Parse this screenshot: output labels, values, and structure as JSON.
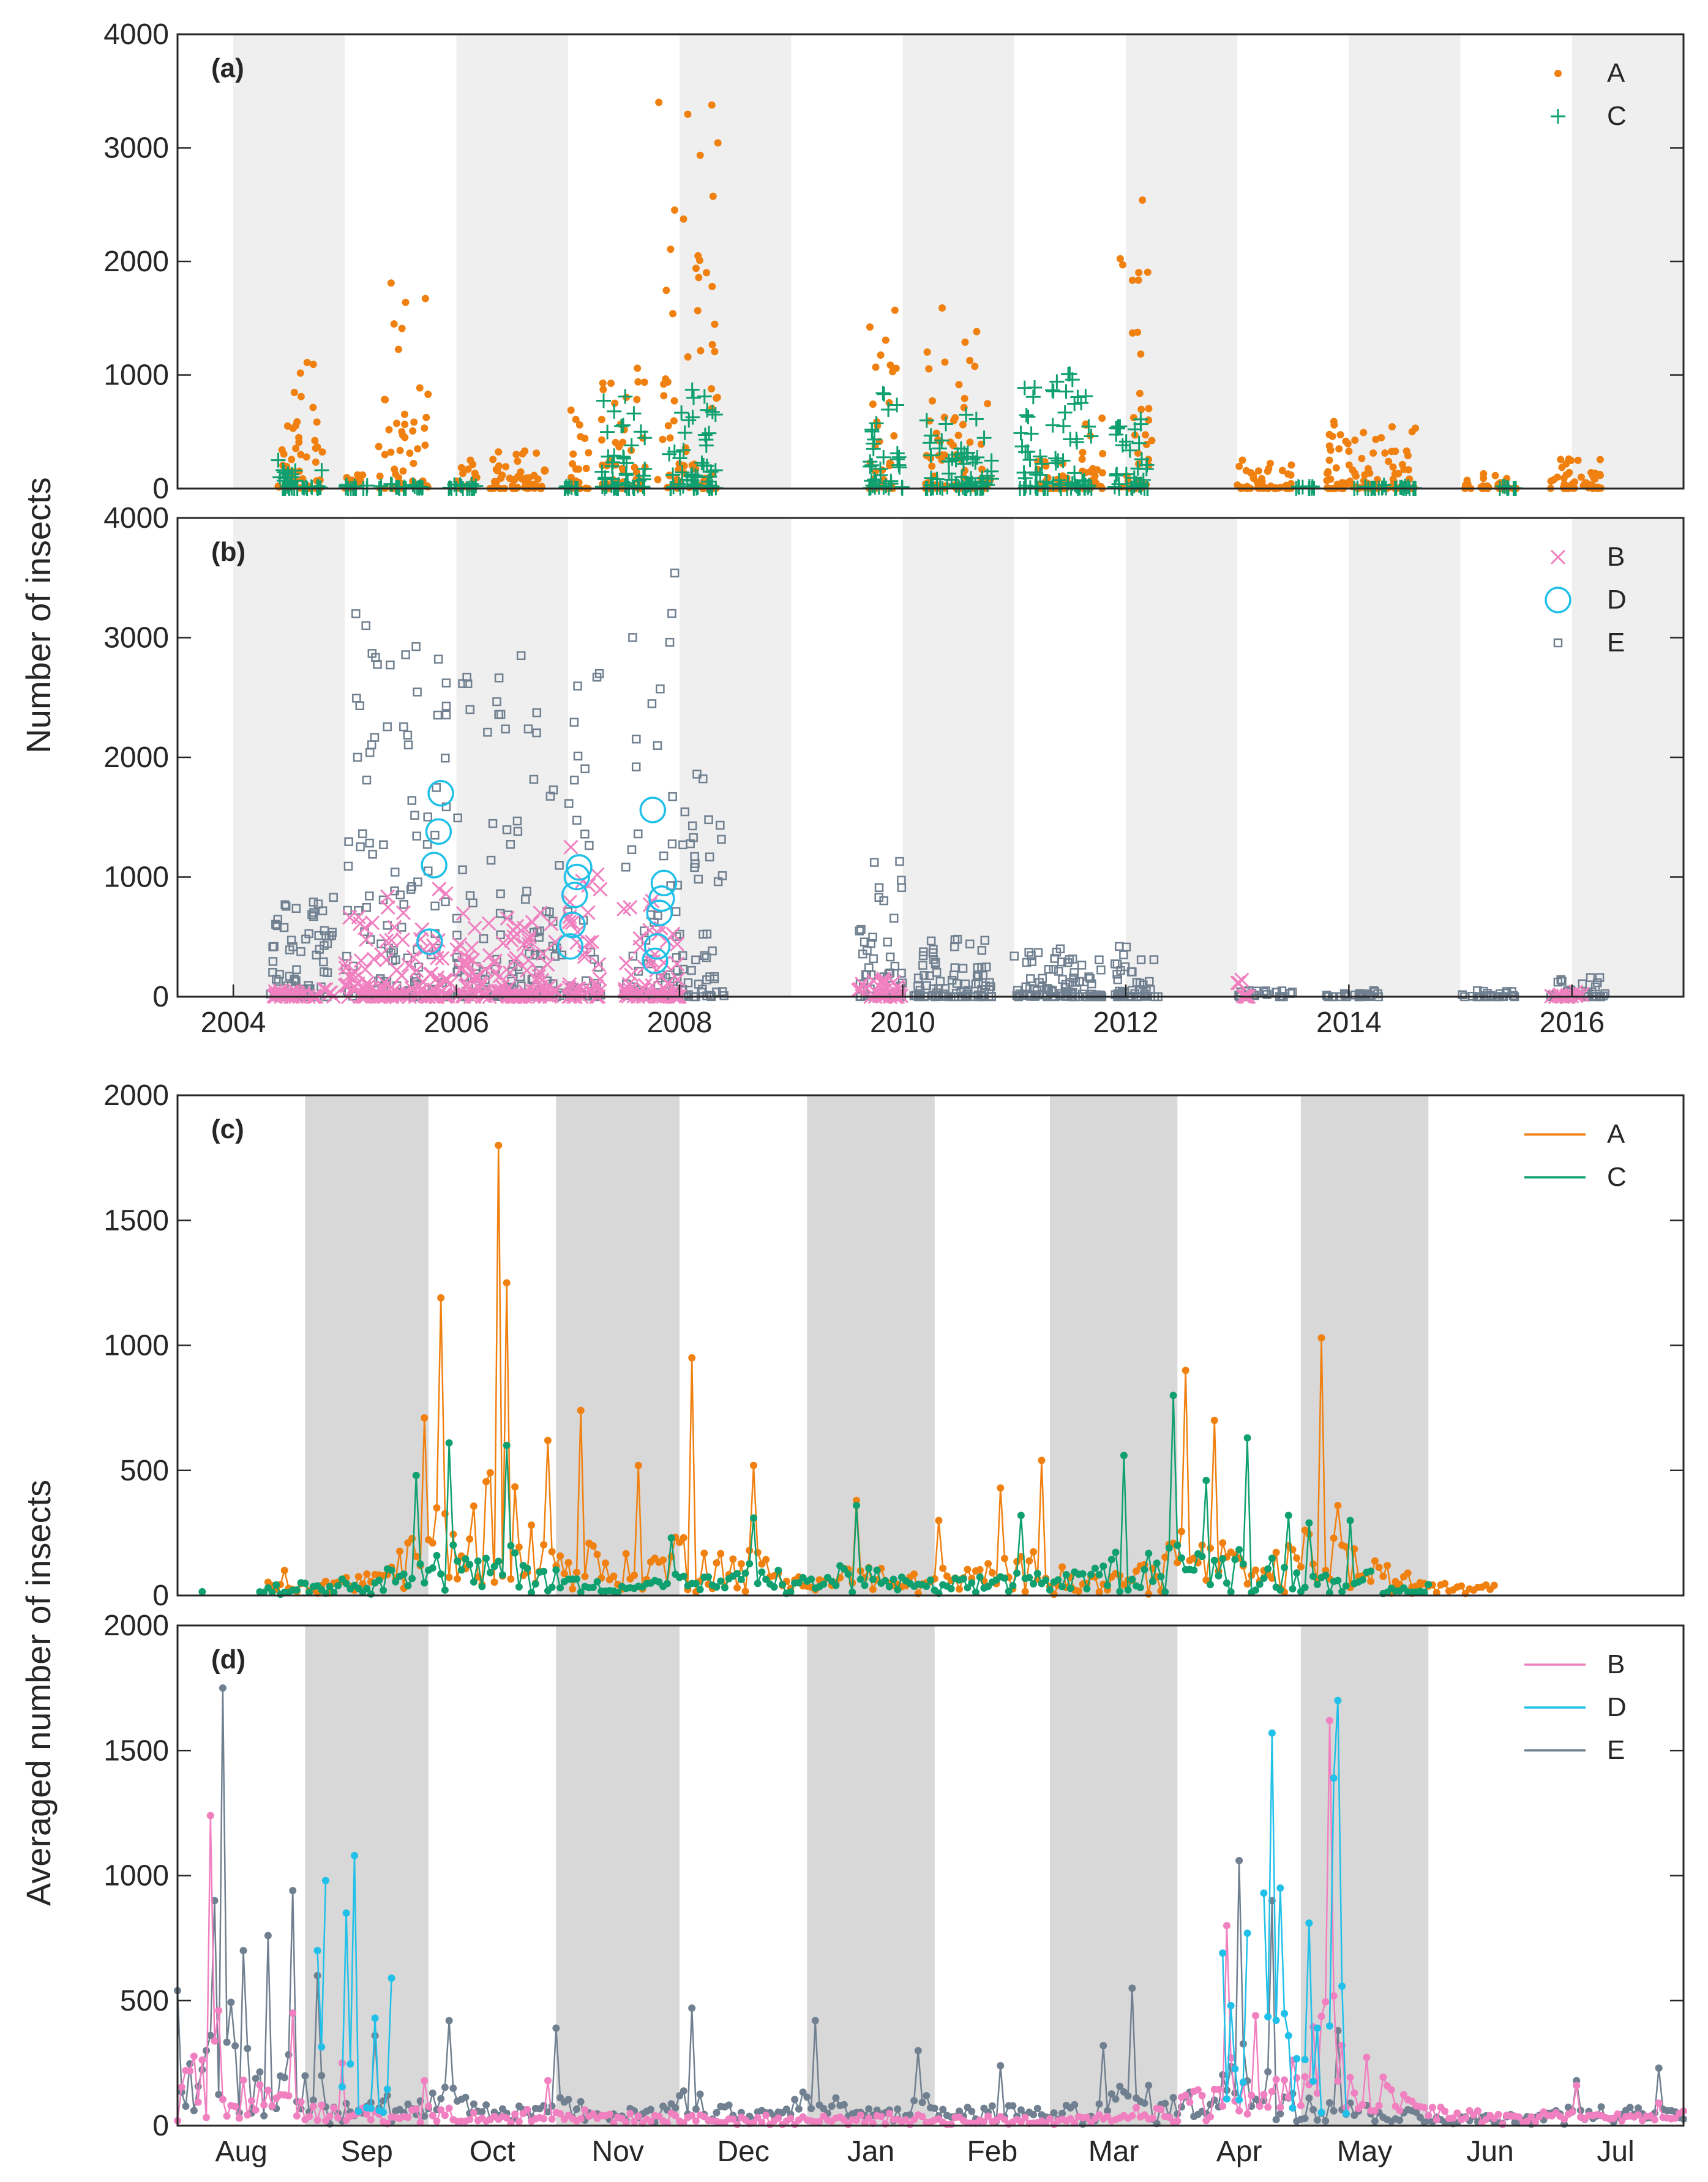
{
  "chart_data": [
    {
      "panel": "(a)",
      "type": "scatter",
      "ylabel": "Number of insects",
      "xlim": [
        2003.5,
        2017.0
      ],
      "ylim": [
        0,
        4000
      ],
      "yticks": [
        "0",
        "1000",
        "2000",
        "3000",
        "4000"
      ],
      "shaded_years": [
        2004,
        2006,
        2008,
        2010,
        2012,
        2014,
        2016
      ],
      "legend": [
        "A",
        "C"
      ],
      "colors": {
        "A": "#f08010",
        "C": "#10a070"
      },
      "series": [
        {
          "name": "A",
          "marker": "dot",
          "clusters": [
            {
              "x0": 2004.4,
              "x1": 2004.8,
              "peak": 1110
            },
            {
              "x0": 2005.0,
              "x1": 2005.2,
              "peak": 120
            },
            {
              "x0": 2005.3,
              "x1": 2005.75,
              "peak": 1810
            },
            {
              "x0": 2006.0,
              "x1": 2006.2,
              "peak": 250
            },
            {
              "x0": 2006.3,
              "x1": 2006.8,
              "peak": 330
            },
            {
              "x0": 2007.0,
              "x1": 2007.2,
              "peak": 690
            },
            {
              "x0": 2007.3,
              "x1": 2007.7,
              "peak": 1060
            },
            {
              "x0": 2007.8,
              "x1": 2008.35,
              "peak": 3400
            },
            {
              "x0": 2009.7,
              "x1": 2009.95,
              "peak": 1570
            },
            {
              "x0": 2010.2,
              "x1": 2010.8,
              "peak": 1590
            },
            {
              "x0": 2011.2,
              "x1": 2011.5,
              "peak": 240
            },
            {
              "x0": 2011.6,
              "x1": 2011.8,
              "peak": 620
            },
            {
              "x0": 2011.95,
              "x1": 2012.25,
              "peak": 2540
            },
            {
              "x0": 2013.0,
              "x1": 2013.5,
              "peak": 250
            },
            {
              "x0": 2013.8,
              "x1": 2014.6,
              "peak": 590
            },
            {
              "x0": 2015.0,
              "x1": 2015.5,
              "peak": 130
            },
            {
              "x0": 2015.8,
              "x1": 2016.3,
              "peak": 260
            }
          ]
        },
        {
          "name": "C",
          "marker": "plus",
          "clusters": [
            {
              "x0": 2004.4,
              "x1": 2004.8,
              "peak": 250
            },
            {
              "x0": 2005.0,
              "x1": 2005.7,
              "peak": 40
            },
            {
              "x0": 2005.9,
              "x1": 2006.2,
              "peak": 40
            },
            {
              "x0": 2006.9,
              "x1": 2007.1,
              "peak": 20
            },
            {
              "x0": 2007.3,
              "x1": 2007.7,
              "peak": 810
            },
            {
              "x0": 2007.9,
              "x1": 2008.35,
              "peak": 870
            },
            {
              "x0": 2009.7,
              "x1": 2010.0,
              "peak": 840
            },
            {
              "x0": 2010.2,
              "x1": 2010.8,
              "peak": 650
            },
            {
              "x0": 2011.05,
              "x1": 2011.7,
              "peak": 1010
            },
            {
              "x0": 2011.9,
              "x1": 2012.2,
              "peak": 610
            },
            {
              "x0": 2013.5,
              "x1": 2013.7,
              "peak": 20
            },
            {
              "x0": 2014.0,
              "x1": 2014.6,
              "peak": 30
            },
            {
              "x0": 2015.3,
              "x1": 2015.5,
              "peak": 20
            }
          ]
        }
      ]
    },
    {
      "panel": "(b)",
      "type": "scatter",
      "ylabel": "Number of insects",
      "xlim": [
        2003.5,
        2017.0
      ],
      "ylim": [
        0,
        4000
      ],
      "yticks": [
        "0",
        "1000",
        "2000",
        "3000",
        "4000"
      ],
      "xticks": [
        "2004",
        "2006",
        "2008",
        "2010",
        "2012",
        "2014",
        "2016"
      ],
      "shaded_years": [
        2004,
        2006,
        2008,
        2010,
        2012,
        2014,
        2016
      ],
      "legend": [
        "B",
        "D",
        "E"
      ],
      "colors": {
        "B": "#f080c0",
        "D": "#20c0e8",
        "E": "#708090"
      },
      "series": [
        {
          "name": "E",
          "marker": "square",
          "clusters": [
            {
              "x0": 2004.3,
              "x1": 2004.9,
              "peak": 830
            },
            {
              "x0": 2005.0,
              "x1": 2005.95,
              "peak": 3200
            },
            {
              "x0": 2006.0,
              "x1": 2006.95,
              "peak": 2850
            },
            {
              "x0": 2007.0,
              "x1": 2007.3,
              "peak": 2700
            },
            {
              "x0": 2007.5,
              "x1": 2008.0,
              "peak": 3540
            },
            {
              "x0": 2008.0,
              "x1": 2008.4,
              "peak": 1860
            },
            {
              "x0": 2009.6,
              "x1": 2010.0,
              "peak": 1130
            },
            {
              "x0": 2010.1,
              "x1": 2010.8,
              "peak": 480
            },
            {
              "x0": 2011.0,
              "x1": 2011.8,
              "peak": 400
            },
            {
              "x0": 2011.9,
              "x1": 2012.3,
              "peak": 420
            },
            {
              "x0": 2013.0,
              "x1": 2013.5,
              "peak": 50
            },
            {
              "x0": 2013.8,
              "x1": 2014.3,
              "peak": 50
            },
            {
              "x0": 2015.0,
              "x1": 2015.5,
              "peak": 50
            },
            {
              "x0": 2015.8,
              "x1": 2016.3,
              "peak": 160
            }
          ]
        },
        {
          "name": "B",
          "marker": "x",
          "clusters": [
            {
              "x0": 2004.3,
              "x1": 2004.9,
              "peak": 60
            },
            {
              "x0": 2005.0,
              "x1": 2005.95,
              "peak": 900
            },
            {
              "x0": 2006.0,
              "x1": 2006.9,
              "peak": 700
            },
            {
              "x0": 2007.0,
              "x1": 2007.3,
              "peak": 1250
            },
            {
              "x0": 2007.5,
              "x1": 2008.0,
              "peak": 800
            },
            {
              "x0": 2009.6,
              "x1": 2010.0,
              "peak": 150
            },
            {
              "x0": 2013.0,
              "x1": 2013.1,
              "peak": 140
            },
            {
              "x0": 2015.8,
              "x1": 2016.1,
              "peak": 40
            }
          ]
        },
        {
          "name": "D",
          "marker": "circle",
          "points": [
            [
              2005.76,
              460
            ],
            [
              2005.8,
              1100
            ],
            [
              2005.84,
              1380
            ],
            [
              2005.86,
              1700
            ],
            [
              2007.02,
              420
            ],
            [
              2007.04,
              600
            ],
            [
              2007.06,
              850
            ],
            [
              2007.08,
              1000
            ],
            [
              2007.1,
              1080
            ],
            [
              2007.78,
              300
            ],
            [
              2007.8,
              420
            ],
            [
              2007.82,
              700
            ],
            [
              2007.84,
              820
            ],
            [
              2007.86,
              950
            ],
            [
              2007.76,
              1560
            ]
          ]
        }
      ]
    },
    {
      "panel": "(c)",
      "type": "line",
      "ylabel": "Averaged number of insects",
      "xlim": [
        0,
        366
      ],
      "ylim": [
        0,
        2000
      ],
      "yticks": [
        "0",
        "500",
        "1000",
        "1500",
        "2000"
      ],
      "shaded_months": [
        "Sep",
        "Nov",
        "Jan",
        "Mar",
        "May"
      ],
      "legend": [
        "A",
        "C"
      ],
      "colors": {
        "A": "#f08010",
        "C": "#10a070"
      },
      "series": [
        {
          "name": "A",
          "segments": [
            {
              "x0": 22,
              "x1": 320,
              "peaks": [
                [
                  26,
                  100
                ],
                [
                  60,
                  710
                ],
                [
                  64,
                  1190
                ],
                [
                  78,
                  1800
                ],
                [
                  80,
                  1250
                ],
                [
                  90,
                  620
                ],
                [
                  98,
                  740
                ],
                [
                  112,
                  520
                ],
                [
                  125,
                  950
                ],
                [
                  140,
                  520
                ],
                [
                  165,
                  380
                ],
                [
                  185,
                  300
                ],
                [
                  200,
                  430
                ],
                [
                  210,
                  540
                ],
                [
                  245,
                  900
                ],
                [
                  252,
                  700
                ],
                [
                  278,
                  1030
                ],
                [
                  282,
                  360
                ]
              ]
            },
            {
              "x0": 295,
              "x1": 302,
              "peaks": [
                [
                  298,
                  30
                ]
              ]
            }
          ]
        },
        {
          "name": "C",
          "segments": [
            {
              "x0": 6,
              "x1": 6,
              "peaks": [
                [
                  6,
                  15
                ]
              ]
            },
            {
              "x0": 20,
              "x1": 290,
              "peaks": [
                [
                  58,
                  480
                ],
                [
                  66,
                  610
                ],
                [
                  80,
                  600
                ],
                [
                  120,
                  230
                ],
                [
                  140,
                  310
                ],
                [
                  165,
                  360
                ],
                [
                  205,
                  320
                ],
                [
                  230,
                  560
                ],
                [
                  242,
                  800
                ],
                [
                  250,
                  460
                ],
                [
                  260,
                  630
                ],
                [
                  270,
                  320
                ],
                [
                  275,
                  290
                ],
                [
                  285,
                  300
                ]
              ]
            },
            {
              "x0": 293,
              "x1": 304,
              "peaks": [
                [
                  298,
                  30
                ]
              ]
            }
          ]
        }
      ]
    },
    {
      "panel": "(d)",
      "type": "line",
      "ylabel": "Averaged number of insects",
      "xlim": [
        0,
        366
      ],
      "ylim": [
        0,
        2000
      ],
      "yticks": [
        "0",
        "500",
        "1000",
        "1500",
        "2000"
      ],
      "xticks": [
        "Aug",
        "Sep",
        "Oct",
        "Nov",
        "Dec",
        "Jan",
        "Feb",
        "Mar",
        "Apr",
        "May",
        "Jun",
        "Jul"
      ],
      "shaded_months": [
        "Sep",
        "Nov",
        "Jan",
        "Mar",
        "May"
      ],
      "legend": [
        "B",
        "D",
        "E"
      ],
      "colors": {
        "B": "#f080c0",
        "D": "#20c0e8",
        "E": "#708090"
      },
      "series": [
        {
          "name": "E",
          "segments": [
            {
              "x0": 0,
              "x1": 366,
              "peaks": [
                [
                  0,
                  540
                ],
                [
                  9,
                  900
                ],
                [
                  11,
                  1750
                ],
                [
                  16,
                  700
                ],
                [
                  22,
                  760
                ],
                [
                  28,
                  940
                ],
                [
                  34,
                  600
                ],
                [
                  48,
                  360
                ],
                [
                  66,
                  420
                ],
                [
                  92,
                  390
                ],
                [
                  125,
                  470
                ],
                [
                  155,
                  420
                ],
                [
                  180,
                  300
                ],
                [
                  200,
                  240
                ],
                [
                  225,
                  320
                ],
                [
                  232,
                  550
                ],
                [
                  258,
                  1060
                ],
                [
                  266,
                  900
                ],
                [
                  282,
                  380
                ],
                [
                  300,
                  60
                ],
                [
                  340,
                  180
                ],
                [
                  360,
                  230
                ]
              ]
            }
          ]
        },
        {
          "name": "B",
          "segments": [
            {
              "x0": 0,
              "x1": 366,
              "peaks": [
                [
                  0,
                  20
                ],
                [
                  8,
                  1240
                ],
                [
                  10,
                  460
                ],
                [
                  28,
                  450
                ],
                [
                  40,
                  250
                ],
                [
                  60,
                  180
                ],
                [
                  90,
                  180
                ],
                [
                  120,
                  50
                ],
                [
                  170,
                  40
                ],
                [
                  230,
                  40
                ],
                [
                  255,
                  800
                ],
                [
                  262,
                  440
                ],
                [
                  280,
                  1620
                ],
                [
                  290,
                  60
                ],
                [
                  340,
                  160
                ],
                [
                  360,
                  90
                ]
              ]
            }
          ]
        },
        {
          "name": "D",
          "segments": [
            {
              "x0": 34,
              "x1": 36,
              "peaks": [
                [
                  34,
                  700
                ],
                [
                  36,
                  980
                ]
              ]
            },
            {
              "x0": 40,
              "x1": 44,
              "peaks": [
                [
                  41,
                  850
                ],
                [
                  43,
                  1080
                ]
              ]
            },
            {
              "x0": 46,
              "x1": 52,
              "peaks": [
                [
                  48,
                  430
                ],
                [
                  52,
                  590
                ]
              ]
            },
            {
              "x0": 254,
              "x1": 260,
              "peaks": [
                [
                  254,
                  690
                ],
                [
                  256,
                  480
                ],
                [
                  260,
                  770
                ]
              ]
            },
            {
              "x0": 264,
              "x1": 272,
              "peaks": [
                [
                  264,
                  930
                ],
                [
                  266,
                  1570
                ],
                [
                  268,
                  950
                ],
                [
                  270,
                  360
                ]
              ]
            },
            {
              "x0": 274,
              "x1": 278,
              "peaks": [
                [
                  275,
                  810
                ],
                [
                  277,
                  390
                ]
              ]
            },
            {
              "x0": 280,
              "x1": 284,
              "peaks": [
                [
                  281,
                  1390
                ],
                [
                  282,
                  1700
                ]
              ]
            }
          ]
        }
      ]
    }
  ]
}
